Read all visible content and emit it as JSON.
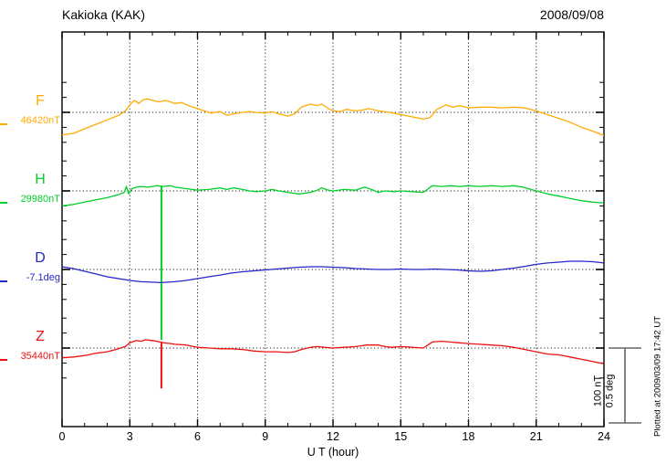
{
  "header": {
    "title": "Kakioka (KAK)",
    "date": "2008/09/08"
  },
  "footer": {
    "plotted_at": "Plotted at 2009/03/09 17:42 UT"
  },
  "scale_bar": {
    "line1": "100 nT",
    "line2": "0.5 deg",
    "nT_per_bar": 100,
    "deg_per_bar": 0.5,
    "color": "#666666"
  },
  "chart_data": {
    "type": "line",
    "title": "Kakioka (KAK) magnetogram 2008/09/08",
    "xlabel": "U T (hour)",
    "x_range": [
      0,
      24
    ],
    "x_major_ticks": [
      0,
      3,
      6,
      9,
      12,
      15,
      18,
      21,
      24
    ],
    "x_minor_step": 1,
    "grid": "dotted vertical lines at 3-hour marks; dotted horizontal line at each channel baseline",
    "legend_position": "left margin channel labels",
    "channels": [
      {
        "id": "F",
        "label": "F",
        "value_label": "46420nT",
        "baseline_value": 46420,
        "unit": "nT",
        "color": "#ffab00",
        "spike": null,
        "points": [
          [
            0,
            -30
          ],
          [
            0.5,
            -28
          ],
          [
            1,
            -22
          ],
          [
            1.5,
            -16
          ],
          [
            2,
            -10
          ],
          [
            2.5,
            -4
          ],
          [
            2.8,
            2
          ],
          [
            3,
            10
          ],
          [
            3.2,
            16
          ],
          [
            3.4,
            12
          ],
          [
            3.6,
            17
          ],
          [
            3.8,
            18
          ],
          [
            4,
            16
          ],
          [
            4.3,
            14
          ],
          [
            4.6,
            16
          ],
          [
            5,
            12
          ],
          [
            5.3,
            13
          ],
          [
            5.6,
            9
          ],
          [
            6,
            5
          ],
          [
            6.3,
            2
          ],
          [
            6.6,
            -1
          ],
          [
            7,
            1
          ],
          [
            7.3,
            -4
          ],
          [
            7.6,
            -2
          ],
          [
            8,
            0
          ],
          [
            8.3,
            1
          ],
          [
            8.6,
            0
          ],
          [
            9,
            -1
          ],
          [
            9.3,
            1
          ],
          [
            9.6,
            -2
          ],
          [
            10,
            -5
          ],
          [
            10.3,
            -2
          ],
          [
            10.6,
            7
          ],
          [
            11,
            11
          ],
          [
            11.3,
            9
          ],
          [
            11.5,
            11
          ],
          [
            11.8,
            5
          ],
          [
            12,
            2
          ],
          [
            12.3,
            1
          ],
          [
            12.6,
            4
          ],
          [
            13,
            2
          ],
          [
            13.3,
            3
          ],
          [
            13.6,
            5
          ],
          [
            14,
            2
          ],
          [
            14.5,
            0
          ],
          [
            15,
            -3
          ],
          [
            15.5,
            -6
          ],
          [
            16,
            -9
          ],
          [
            16.3,
            -7
          ],
          [
            16.6,
            4
          ],
          [
            17,
            10
          ],
          [
            17.3,
            7
          ],
          [
            17.6,
            9
          ],
          [
            18,
            6
          ],
          [
            18.5,
            7
          ],
          [
            19,
            7
          ],
          [
            19.5,
            6
          ],
          [
            20,
            7
          ],
          [
            20.5,
            6
          ],
          [
            21,
            2
          ],
          [
            21.5,
            -3
          ],
          [
            22,
            -8
          ],
          [
            22.5,
            -13
          ],
          [
            23,
            -20
          ],
          [
            23.5,
            -25
          ],
          [
            24,
            -31
          ]
        ]
      },
      {
        "id": "H",
        "label": "H",
        "value_label": "29980nT",
        "baseline_value": 29980,
        "unit": "nT",
        "color": "#00d02a",
        "spike": {
          "hour": 4.4,
          "from": 7,
          "to": -199
        },
        "points": [
          [
            0,
            -20
          ],
          [
            0.5,
            -18
          ],
          [
            1,
            -15
          ],
          [
            1.5,
            -12
          ],
          [
            2,
            -9
          ],
          [
            2.5,
            -5
          ],
          [
            2.75,
            -2
          ],
          [
            2.85,
            6
          ],
          [
            2.95,
            -4
          ],
          [
            3.1,
            3
          ],
          [
            3.3,
            5
          ],
          [
            3.5,
            6
          ],
          [
            3.8,
            5
          ],
          [
            4,
            6
          ],
          [
            4.2,
            7
          ],
          [
            4.5,
            6
          ],
          [
            4.8,
            7
          ],
          [
            5,
            5
          ],
          [
            5.5,
            3
          ],
          [
            6,
            1
          ],
          [
            6.5,
            2
          ],
          [
            7,
            4
          ],
          [
            7.3,
            2
          ],
          [
            7.6,
            4
          ],
          [
            8,
            2
          ],
          [
            8.3,
            0
          ],
          [
            8.6,
            -1
          ],
          [
            9,
            0
          ],
          [
            9.3,
            2
          ],
          [
            9.6,
            0
          ],
          [
            10,
            -2
          ],
          [
            10.5,
            -4
          ],
          [
            11,
            -2
          ],
          [
            11.3,
            1
          ],
          [
            11.5,
            4
          ],
          [
            11.8,
            1
          ],
          [
            12,
            0
          ],
          [
            12.5,
            2
          ],
          [
            13,
            1
          ],
          [
            13.4,
            5
          ],
          [
            13.7,
            2
          ],
          [
            14,
            -2
          ],
          [
            14.3,
            0
          ],
          [
            14.7,
            -1
          ],
          [
            15,
            0
          ],
          [
            15.5,
            -1
          ],
          [
            16,
            -2
          ],
          [
            16.4,
            7
          ],
          [
            16.8,
            6
          ],
          [
            17.2,
            7
          ],
          [
            17.6,
            6
          ],
          [
            18,
            7
          ],
          [
            18.5,
            6
          ],
          [
            19,
            7
          ],
          [
            19.5,
            6
          ],
          [
            20,
            7
          ],
          [
            20.4,
            5
          ],
          [
            21,
            0
          ],
          [
            21.5,
            -4
          ],
          [
            22,
            -7
          ],
          [
            22.5,
            -10
          ],
          [
            23,
            -13
          ],
          [
            23.5,
            -15
          ],
          [
            24,
            -16
          ]
        ]
      },
      {
        "id": "D",
        "label": "D",
        "value_label": "-7.1deg",
        "baseline_value": -7.1,
        "unit": "deg",
        "color": "#2426c9",
        "spike": null,
        "points": [
          [
            0,
            0.018
          ],
          [
            0.5,
            0.006
          ],
          [
            1,
            -0.012
          ],
          [
            1.5,
            -0.03
          ],
          [
            2,
            -0.049
          ],
          [
            2.5,
            -0.061
          ],
          [
            3,
            -0.073
          ],
          [
            3.5,
            -0.082
          ],
          [
            4,
            -0.085
          ],
          [
            4.4,
            -0.088
          ],
          [
            5,
            -0.082
          ],
          [
            5.5,
            -0.073
          ],
          [
            6,
            -0.061
          ],
          [
            6.5,
            -0.049
          ],
          [
            7,
            -0.037
          ],
          [
            7.5,
            -0.024
          ],
          [
            8,
            -0.015
          ],
          [
            8.5,
            -0.009
          ],
          [
            9,
            -0.003
          ],
          [
            9.5,
            0.003
          ],
          [
            10,
            0.009
          ],
          [
            10.5,
            0.015
          ],
          [
            11,
            0.018
          ],
          [
            11.5,
            0.018
          ],
          [
            12,
            0.015
          ],
          [
            12.5,
            0.012
          ],
          [
            13,
            0.006
          ],
          [
            13.5,
            0.003
          ],
          [
            14,
            0
          ],
          [
            14.5,
            0
          ],
          [
            15,
            0.003
          ],
          [
            15.5,
            0
          ],
          [
            16,
            0
          ],
          [
            16.5,
            0.003
          ],
          [
            17,
            0
          ],
          [
            17.5,
            -0.003
          ],
          [
            18,
            -0.009
          ],
          [
            18.5,
            -0.012
          ],
          [
            19,
            -0.009
          ],
          [
            19.5,
            0
          ],
          [
            20,
            0.009
          ],
          [
            20.5,
            0.021
          ],
          [
            21,
            0.034
          ],
          [
            21.5,
            0.043
          ],
          [
            22,
            0.049
          ],
          [
            22.5,
            0.055
          ],
          [
            23,
            0.055
          ],
          [
            23.5,
            0.052
          ],
          [
            24,
            0.043
          ]
        ]
      },
      {
        "id": "Z",
        "label": "Z",
        "value_label": "35440nT",
        "baseline_value": 35440,
        "unit": "nT",
        "color": "#ee1111",
        "spike": {
          "hour": 4.4,
          "from": 8,
          "to": -54
        },
        "points": [
          [
            0,
            -13
          ],
          [
            0.5,
            -12
          ],
          [
            1,
            -10
          ],
          [
            1.5,
            -7
          ],
          [
            2,
            -5
          ],
          [
            2.5,
            -1
          ],
          [
            2.8,
            2
          ],
          [
            3,
            7
          ],
          [
            3.3,
            10
          ],
          [
            3.5,
            9
          ],
          [
            3.7,
            11
          ],
          [
            4,
            10
          ],
          [
            4.2,
            9
          ],
          [
            4.5,
            7
          ],
          [
            4.8,
            6
          ],
          [
            5,
            5
          ],
          [
            5.5,
            4
          ],
          [
            6,
            1
          ],
          [
            6.5,
            0
          ],
          [
            7,
            -1
          ],
          [
            7.5,
            -1
          ],
          [
            8,
            -2
          ],
          [
            8.5,
            -4
          ],
          [
            9,
            -5
          ],
          [
            9.5,
            -5
          ],
          [
            10,
            -6
          ],
          [
            10.3,
            -5
          ],
          [
            10.6,
            -2
          ],
          [
            11,
            1
          ],
          [
            11.3,
            2
          ],
          [
            11.6,
            1
          ],
          [
            12,
            0
          ],
          [
            12.5,
            1
          ],
          [
            13,
            2
          ],
          [
            13.5,
            4
          ],
          [
            14,
            4
          ],
          [
            14.3,
            2
          ],
          [
            14.6,
            1
          ],
          [
            15,
            2
          ],
          [
            15.5,
            1
          ],
          [
            16,
            0
          ],
          [
            16.4,
            8
          ],
          [
            16.8,
            9
          ],
          [
            17.2,
            8
          ],
          [
            17.6,
            7
          ],
          [
            18,
            6
          ],
          [
            18.5,
            5
          ],
          [
            19,
            4
          ],
          [
            19.5,
            3
          ],
          [
            20,
            1
          ],
          [
            20.5,
            -2
          ],
          [
            21,
            -5
          ],
          [
            21.5,
            -8
          ],
          [
            22,
            -9
          ],
          [
            22.5,
            -12
          ],
          [
            23,
            -15
          ],
          [
            23.5,
            -18
          ],
          [
            24,
            -21
          ]
        ]
      }
    ]
  }
}
